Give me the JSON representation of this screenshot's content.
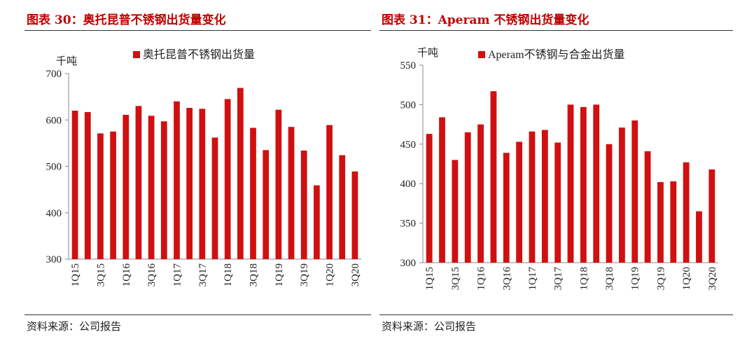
{
  "panels": [
    {
      "figure_title": "图表 30：奥托昆普不锈钢出货量变化",
      "source": "资料来源：公司报告",
      "chart_data": {
        "type": "bar",
        "unit": "千吨",
        "ylim": [
          300,
          700
        ],
        "yticks": [
          300,
          400,
          500,
          600,
          700
        ],
        "color": "#d01010",
        "categories": [
          "1Q15",
          "2Q15",
          "3Q15",
          "4Q15",
          "1Q16",
          "2Q16",
          "3Q16",
          "4Q16",
          "1Q17",
          "2Q17",
          "3Q17",
          "4Q17",
          "1Q18",
          "2Q18",
          "3Q18",
          "4Q18",
          "1Q19",
          "2Q19",
          "3Q19",
          "4Q19",
          "1Q20",
          "2Q20",
          "3Q20"
        ],
        "tick_labels": [
          "1Q15",
          "",
          "3Q15",
          "",
          "1Q16",
          "",
          "3Q16",
          "",
          "1Q17",
          "",
          "3Q17",
          "",
          "1Q18",
          "",
          "3Q18",
          "",
          "1Q19",
          "",
          "3Q19",
          "",
          "1Q20",
          "",
          "3Q20"
        ],
        "series": [
          {
            "name": "奥托昆普不锈钢出货量",
            "values": [
              620,
              617,
              571,
              575,
              611,
              630,
              609,
              597,
              640,
              626,
              624,
              562,
              645,
              669,
              583,
              535,
              622,
              585,
              534,
              459,
              589,
              524,
              489
            ]
          }
        ]
      }
    },
    {
      "figure_title": "图表 31：Aperam 不锈钢出货量变化",
      "source": "资料来源：公司报告",
      "chart_data": {
        "type": "bar",
        "unit": "千吨",
        "ylim": [
          300,
          550
        ],
        "yticks": [
          300,
          350,
          400,
          450,
          500,
          550
        ],
        "color": "#d01010",
        "categories": [
          "1Q15",
          "2Q15",
          "3Q15",
          "4Q15",
          "1Q16",
          "2Q16",
          "3Q16",
          "4Q16",
          "1Q17",
          "2Q17",
          "3Q17",
          "4Q17",
          "1Q18",
          "2Q18",
          "3Q18",
          "4Q18",
          "1Q19",
          "2Q19",
          "3Q19",
          "4Q19",
          "1Q20",
          "2Q20",
          "3Q20"
        ],
        "tick_labels": [
          "1Q15",
          "",
          "3Q15",
          "",
          "1Q16",
          "",
          "3Q16",
          "",
          "1Q17",
          "",
          "3Q17",
          "",
          "1Q18",
          "",
          "3Q18",
          "",
          "1Q19",
          "",
          "3Q19",
          "",
          "1Q20",
          "",
          "3Q20"
        ],
        "series": [
          {
            "name": "Aperam不锈钢与合金出货量",
            "values": [
              463,
              484,
              430,
              465,
              475,
              517,
              439,
              453,
              466,
              468,
              452,
              500,
              497,
              500,
              450,
              471,
              480,
              441,
              402,
              403,
              427,
              365,
              418
            ]
          }
        ]
      }
    }
  ]
}
